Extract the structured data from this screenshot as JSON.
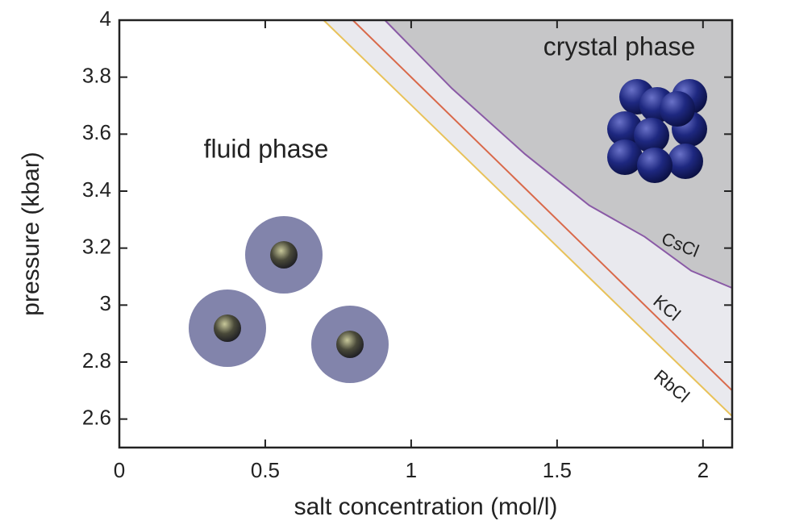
{
  "chart_data": {
    "type": "line",
    "xlabel": "salt concentration (mol/l)",
    "ylabel": "pressure (kbar)",
    "annotations": [
      "crystal phase",
      "fluid phase"
    ],
    "xlim": [
      0,
      2.1
    ],
    "ylim": [
      2.5,
      4
    ],
    "xticks": [
      0,
      0.5,
      1,
      1.5,
      2
    ],
    "yticks": [
      2.6,
      2.8,
      3,
      3.2,
      3.4,
      3.6,
      3.8,
      4
    ],
    "series": [
      {
        "name": "CsCl",
        "color": "#8a5aa6",
        "x": [
          0.91,
          1.14,
          1.39,
          1.61,
          1.8,
          1.96,
          2.1
        ],
        "values": [
          4,
          3.76,
          3.53,
          3.35,
          3.24,
          3.12,
          3.06
        ]
      },
      {
        "name": "KCl",
        "color": "#d9694a",
        "x": [
          0.8,
          2.1
        ],
        "values": [
          4,
          2.7
        ]
      },
      {
        "name": "RbCl",
        "color": "#e8c25a",
        "x": [
          0.7,
          2.1
        ],
        "values": [
          4,
          2.61
        ]
      }
    ]
  }
}
